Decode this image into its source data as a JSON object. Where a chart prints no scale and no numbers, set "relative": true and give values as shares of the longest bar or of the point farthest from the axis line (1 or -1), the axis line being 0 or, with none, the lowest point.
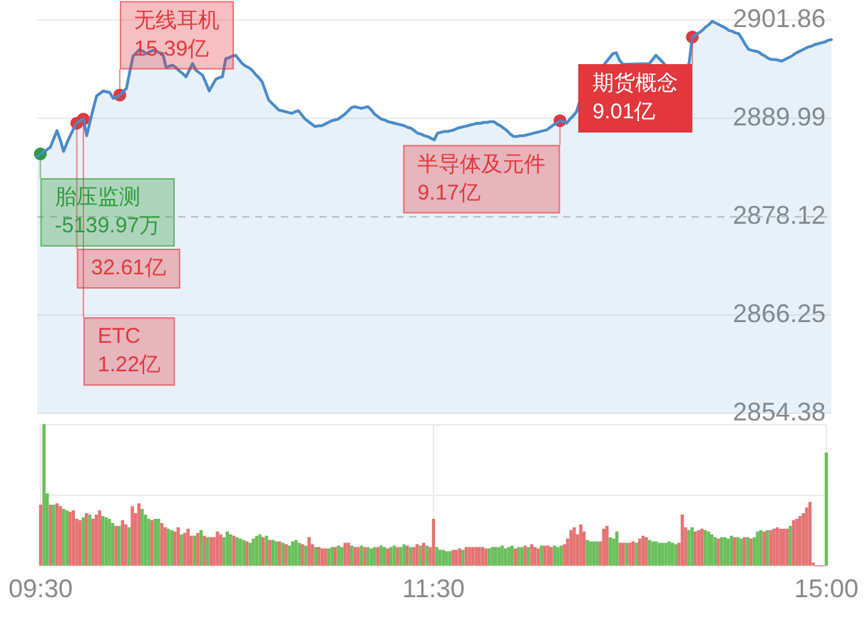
{
  "chart_data": [
    {
      "type": "area",
      "grid": "y",
      "tick_labels": "y",
      "marker": "none",
      "categories": [
        null,
        null,
        null,
        null,
        null,
        null,
        null,
        null,
        null,
        null,
        null,
        null,
        null,
        null,
        null,
        null,
        null,
        null,
        null,
        null,
        null,
        null,
        null,
        null,
        null,
        null,
        null,
        null,
        null,
        null,
        null,
        null,
        null,
        null,
        null,
        null,
        null,
        null,
        null,
        null,
        null,
        null,
        null,
        null,
        null,
        null,
        null,
        null,
        null,
        null,
        null,
        null,
        null,
        null,
        null,
        null,
        null,
        null,
        null,
        null,
        null,
        null,
        null,
        null,
        null,
        null,
        null,
        null,
        null,
        null,
        null,
        null,
        null,
        null,
        null,
        null,
        null,
        null,
        null,
        null,
        null,
        null,
        null,
        null,
        null,
        null,
        null,
        null,
        null,
        null,
        null,
        null,
        null,
        null,
        null,
        null,
        null,
        null,
        null,
        null,
        null,
        null,
        null,
        null,
        null,
        null,
        null,
        null,
        null,
        null,
        null,
        null,
        null,
        null,
        null,
        null,
        null,
        null,
        null,
        null,
        null,
        null,
        null,
        null,
        null,
        null,
        null,
        null,
        null,
        null,
        null,
        null,
        null,
        null,
        null,
        null,
        null,
        null,
        null,
        null,
        null,
        null,
        null,
        null,
        null,
        null,
        null,
        null,
        null,
        null,
        null,
        null,
        null,
        null,
        null,
        null,
        null,
        null,
        null,
        null,
        null,
        null,
        null,
        null,
        null,
        null,
        null,
        null,
        null,
        null,
        null,
        null,
        null,
        null,
        null,
        null,
        null,
        null,
        null,
        null,
        null,
        null,
        null,
        null,
        null,
        null,
        null,
        null,
        null,
        null,
        null,
        null,
        null,
        null,
        null,
        null,
        null,
        null,
        null,
        null,
        null,
        null,
        null,
        null,
        null,
        null,
        null,
        null,
        null,
        null,
        null,
        null,
        null,
        null,
        null,
        null,
        null,
        null,
        null,
        null,
        null,
        null,
        null,
        null,
        null,
        null,
        null,
        null,
        null,
        null,
        null,
        null,
        null,
        null,
        null,
        null,
        null,
        null,
        null,
        null,
        null
      ],
      "series": [
        {
          "color": "#4a8bc9",
          "values": [
            2885.4,
            2885.7,
            2886.0,
            2886.2,
            2886.5,
            2887.5,
            2888.5,
            2887.4,
            2886.0,
            2887.0,
            2887.9,
            2888.7,
            2889.4,
            2889.7,
            2889.9,
            2887.9,
            2889.6,
            2891.2,
            2892.7,
            2893.0,
            2893.3,
            2893.2,
            2893.1,
            2892.4,
            2892.6,
            2892.8,
            2893.2,
            2893.6,
            2895.6,
            2897.5,
            2897.9,
            2898.3,
            2898.1,
            2897.8,
            2898.0,
            2898.2,
            2898.1,
            2897.9,
            2897.8,
            2896.1,
            2896.3,
            2896.4,
            2896.1,
            2895.7,
            2895.4,
            2895.0,
            2895.8,
            2896.6,
            2895.8,
            2895.5,
            2895.2,
            2894.3,
            2893.3,
            2894.0,
            2894.7,
            2894.9,
            2895.0,
            2897.2,
            2897.3,
            2897.5,
            2897.6,
            2897.1,
            2896.6,
            2896.3,
            2896.1,
            2895.8,
            2895.3,
            2894.9,
            2894.4,
            2893.3,
            2892.2,
            2891.8,
            2891.4,
            2891.0,
            2890.9,
            2890.8,
            2890.7,
            2890.6,
            2890.8,
            2890.9,
            2890.4,
            2889.9,
            2889.6,
            2889.3,
            2889.0,
            2889.1,
            2889.1,
            2889.3,
            2889.5,
            2889.7,
            2889.8,
            2889.9,
            2890.2,
            2890.5,
            2890.9,
            2891.3,
            2891.4,
            2891.3,
            2891.2,
            2891.3,
            2891.4,
            2891.0,
            2890.5,
            2890.2,
            2889.9,
            2889.8,
            2889.6,
            2889.5,
            2889.4,
            2889.3,
            2889.2,
            2889.1,
            2888.9,
            2888.8,
            2888.5,
            2888.2,
            2888.1,
            2887.9,
            2887.8,
            2887.6,
            2887.4,
            2888.2,
            2888.3,
            2888.4,
            2888.4,
            2888.5,
            2888.6,
            2888.8,
            2888.9,
            2889.0,
            2889.1,
            2889.2,
            2889.3,
            2889.4,
            2889.4,
            2889.5,
            2889.5,
            2889.6,
            2889.6,
            2889.3,
            2889.1,
            2888.8,
            2888.5,
            2888.1,
            2887.8,
            2887.8,
            2887.9,
            2887.9,
            2888.0,
            2888.1,
            2888.2,
            2888.3,
            2888.4,
            2888.5,
            2888.6,
            2888.9,
            2889.2,
            2889.4,
            2889.7,
            2889.6,
            2889.4,
            2889.9,
            2890.3,
            2890.8,
            2892.1,
            null,
            null,
            null,
            null,
            null,
            null,
            2896.3,
            2896.8,
            2897.3,
            2897.8,
            2897.9,
            2897.0,
            2896.5,
            null,
            null,
            null,
            null,
            null,
            null,
            null,
            2896.6,
            2897.1,
            2897.6,
            2897.2,
            2896.8,
            2896.3,
            null,
            null,
            null,
            null,
            null,
            2896.2,
            2896.6,
            2899.8,
            2900.1,
            2900.3,
            2900.6,
            2901.0,
            2901.3,
            2901.7,
            2901.5,
            2901.3,
            2901.1,
            2900.9,
            2900.6,
            2900.5,
            2900.3,
            2900.2,
            2899.6,
            2898.9,
            2898.3,
            2898.2,
            2898.1,
            2898.0,
            2897.7,
            2897.5,
            2897.2,
            2897.1,
            2897.1,
            2897.0,
            2896.9,
            2897.1,
            2897.3,
            2897.5,
            2897.8,
            2898.0,
            2898.2,
            2898.4,
            2898.6,
            2898.7,
            2898.9,
            2899.0,
            2899.1,
            2899.2,
            2899.4,
            2899.5
          ]
        },
        {
          "type": "scatter",
          "marker": "circle",
          "color": "#2e9b3c",
          "values": [
            null,
            2885.7,
            null,
            null,
            null,
            null,
            null,
            null,
            null,
            null,
            null,
            null,
            null,
            null,
            null,
            null,
            null,
            null,
            null,
            null,
            null,
            null,
            null,
            null,
            null,
            null,
            null,
            null,
            null,
            null,
            null,
            null,
            null,
            null,
            null,
            null,
            null,
            null,
            null,
            null,
            null,
            null,
            null,
            null,
            null,
            null,
            null,
            null,
            null,
            null,
            null,
            null,
            null,
            null,
            null,
            null,
            null,
            null,
            null,
            null,
            null,
            null,
            null,
            null,
            null,
            null,
            null,
            null,
            null,
            null,
            null,
            null,
            null,
            null,
            null,
            null,
            null,
            null,
            null,
            null,
            null,
            null,
            null,
            null,
            null,
            null,
            null,
            null,
            null,
            null,
            null,
            null,
            null,
            null,
            null,
            null,
            null,
            null,
            null,
            null,
            null,
            null,
            null,
            null,
            null,
            null,
            null,
            null,
            null,
            null,
            null,
            null,
            null,
            null,
            null,
            null,
            null,
            null,
            null,
            null,
            null,
            null,
            null,
            null,
            null,
            null,
            null,
            null,
            null,
            null,
            null,
            null,
            null,
            null,
            null,
            null,
            null,
            null,
            null,
            null,
            null,
            null,
            null,
            null,
            null,
            null,
            null,
            null,
            null,
            null,
            null,
            null,
            null,
            null,
            null,
            null,
            null,
            null,
            null,
            null,
            null,
            null,
            null,
            null,
            null,
            null,
            null,
            null,
            null,
            null,
            null,
            null,
            null,
            null,
            null,
            null,
            null,
            null,
            null,
            null,
            null,
            null,
            null,
            null,
            null,
            null,
            null,
            null,
            null,
            null,
            null,
            null,
            null,
            null,
            null,
            null,
            null,
            null,
            null,
            null,
            null,
            null,
            null,
            null,
            null,
            null,
            null,
            null,
            null,
            null,
            null,
            null,
            null,
            null,
            null,
            null,
            null,
            null,
            null,
            null,
            null,
            null,
            null,
            null,
            null,
            null,
            null,
            null,
            null,
            null,
            null,
            null,
            null,
            null,
            null,
            null,
            null,
            null,
            null,
            null,
            null
          ]
        },
        {
          "type": "scatter",
          "marker": "circle",
          "color": "#e2373d",
          "values": [
            null,
            null,
            null,
            null,
            null,
            null,
            null,
            null,
            null,
            null,
            null,
            null,
            2889.4,
            null,
            2889.9,
            null,
            null,
            null,
            null,
            null,
            null,
            null,
            null,
            null,
            null,
            2892.8,
            null,
            null,
            null,
            null,
            null,
            null,
            null,
            null,
            null,
            null,
            null,
            null,
            null,
            null,
            null,
            null,
            null,
            null,
            null,
            null,
            null,
            null,
            null,
            null,
            null,
            null,
            null,
            null,
            null,
            null,
            null,
            null,
            null,
            null,
            null,
            null,
            null,
            null,
            null,
            null,
            null,
            null,
            null,
            null,
            null,
            null,
            null,
            null,
            null,
            null,
            null,
            null,
            null,
            null,
            null,
            null,
            null,
            null,
            null,
            null,
            null,
            null,
            null,
            null,
            null,
            null,
            null,
            null,
            null,
            null,
            null,
            null,
            null,
            null,
            null,
            null,
            null,
            null,
            null,
            null,
            null,
            null,
            null,
            null,
            null,
            null,
            null,
            null,
            null,
            null,
            null,
            null,
            null,
            null,
            null,
            null,
            null,
            null,
            null,
            null,
            null,
            null,
            null,
            null,
            null,
            null,
            null,
            null,
            null,
            null,
            null,
            null,
            null,
            null,
            null,
            null,
            null,
            null,
            null,
            null,
            null,
            null,
            null,
            null,
            null,
            null,
            null,
            null,
            null,
            null,
            null,
            null,
            2889.7,
            null,
            null,
            null,
            null,
            null,
            null,
            null,
            null,
            null,
            null,
            null,
            null,
            null,
            null,
            null,
            null,
            null,
            null,
            null,
            null,
            null,
            null,
            null,
            null,
            null,
            null,
            null,
            null,
            null,
            null,
            null,
            null,
            null,
            null,
            null,
            null,
            null,
            null,
            null,
            2899.8,
            null,
            null,
            null,
            null,
            null,
            null,
            null,
            null,
            null,
            null,
            null,
            null,
            null,
            null,
            null,
            null,
            null,
            null,
            null,
            null,
            null,
            null,
            null,
            null,
            null,
            null,
            null,
            null,
            null,
            null,
            null,
            null,
            null,
            null,
            null,
            null,
            null,
            null,
            null,
            null,
            null,
            null
          ]
        }
      ],
      "ylim": [
        2854.38,
        2901.86
      ],
      "yticks": [
        2854.38,
        2866.25,
        2878.12,
        2889.99,
        2901.86
      ],
      "ref_lines": [
        {
          "axis": "y",
          "value": 2878.12,
          "line_style": "dashed"
        }
      ],
      "annotations": [
        "胎压监测\n-5139.97万",
        "32.61亿",
        "ETC\n1.22亿",
        "无线耳机\n15.39亿",
        "半导体及元件\n9.17亿",
        "期货概念\n9.01亿"
      ]
    },
    {
      "type": "bar",
      "relative": true,
      "grid": true,
      "tick_labels": "x",
      "categories": [
        "09:30",
        null,
        null,
        null,
        null,
        null,
        null,
        null,
        null,
        null,
        null,
        null,
        null,
        null,
        null,
        null,
        null,
        null,
        null,
        null,
        null,
        null,
        null,
        null,
        null,
        null,
        null,
        null,
        null,
        null,
        null,
        null,
        null,
        null,
        null,
        null,
        null,
        null,
        null,
        null,
        null,
        null,
        null,
        null,
        null,
        null,
        null,
        null,
        null,
        null,
        null,
        null,
        null,
        null,
        null,
        null,
        null,
        null,
        null,
        null,
        null,
        null,
        null,
        null,
        null,
        null,
        null,
        null,
        null,
        null,
        null,
        null,
        null,
        null,
        null,
        null,
        null,
        null,
        null,
        null,
        null,
        null,
        null,
        null,
        null,
        null,
        null,
        null,
        null,
        null,
        null,
        null,
        null,
        null,
        null,
        null,
        null,
        null,
        null,
        null,
        null,
        null,
        null,
        null,
        null,
        null,
        null,
        null,
        null,
        null,
        null,
        null,
        null,
        null,
        null,
        null,
        null,
        null,
        null,
        null,
        "11:30",
        null,
        null,
        null,
        null,
        null,
        null,
        null,
        null,
        null,
        null,
        null,
        null,
        null,
        null,
        null,
        null,
        null,
        null,
        null,
        null,
        null,
        null,
        null,
        null,
        null,
        null,
        null,
        null,
        null,
        null,
        null,
        null,
        null,
        null,
        null,
        null,
        null,
        null,
        null,
        null,
        null,
        null,
        null,
        null,
        null,
        null,
        null,
        null,
        null,
        null,
        null,
        null,
        null,
        null,
        null,
        null,
        null,
        null,
        null,
        null,
        null,
        null,
        null,
        null,
        null,
        null,
        null,
        null,
        null,
        null,
        null,
        null,
        null,
        null,
        null,
        null,
        null,
        null,
        null,
        null,
        null,
        null,
        null,
        null,
        null,
        null,
        null,
        null,
        null,
        null,
        null,
        null,
        null,
        null,
        null,
        null,
        null,
        null,
        null,
        null,
        null,
        null,
        null,
        null,
        null,
        null,
        null,
        null,
        null,
        null,
        null,
        null,
        null,
        null,
        null,
        null,
        null,
        null,
        null,
        "15:00"
      ],
      "values": [
        0.43,
        1,
        0.51,
        0.43,
        0.43,
        0.44,
        0.42,
        0.4,
        0.39,
        0.38,
        0.39,
        0.33,
        0.32,
        0.34,
        0.37,
        0.36,
        0.33,
        0.36,
        0.39,
        0.35,
        0.34,
        0.33,
        0.3,
        0.28,
        0.28,
        0.32,
        0.29,
        0.27,
        0.42,
        0.37,
        0.44,
        0.4,
        0.36,
        0.33,
        0.32,
        0.33,
        0.33,
        0.3,
        0.27,
        0.26,
        0.25,
        0.24,
        0.27,
        0.22,
        0.23,
        0.26,
        0.21,
        0.21,
        0.23,
        0.25,
        0.21,
        0.2,
        0.2,
        0.2,
        0.24,
        0.22,
        0.2,
        0.24,
        0.22,
        0.21,
        0.2,
        0.19,
        0.18,
        0.17,
        0.16,
        0.19,
        0.21,
        0.22,
        0.2,
        0.21,
        0.18,
        0.18,
        0.17,
        0.17,
        0.16,
        0.15,
        0.14,
        0.17,
        0.18,
        0.16,
        0.15,
        0.14,
        0.2,
        0.15,
        0.13,
        0.13,
        0.12,
        0.12,
        0.12,
        0.13,
        0.13,
        0.14,
        0.13,
        0.16,
        0.16,
        0.14,
        0.13,
        0.13,
        0.14,
        0.13,
        0.13,
        0.12,
        0.13,
        0.13,
        0.14,
        0.13,
        0.12,
        0.13,
        0.14,
        0.13,
        0.13,
        0.15,
        0.14,
        0.13,
        0.13,
        0.15,
        0.14,
        0.16,
        0.14,
        0.13,
        0.33,
        0.13,
        0.11,
        0.11,
        0.1,
        0.1,
        0.11,
        0.11,
        0.12,
        0.11,
        0.13,
        0.13,
        0.13,
        0.13,
        0.13,
        0.13,
        0.12,
        0.12,
        0.13,
        0.13,
        0.13,
        0.14,
        0.12,
        0.13,
        0.14,
        0.12,
        0.13,
        0.13,
        0.14,
        0.13,
        0.15,
        0.13,
        0.12,
        0.14,
        0.14,
        0.14,
        0.13,
        0.14,
        0.13,
        0.14,
        0.15,
        0.19,
        0.25,
        0.27,
        0.22,
        0.29,
        0.24,
        0.18,
        0.17,
        0.17,
        0.17,
        0.17,
        0.26,
        0.28,
        0.2,
        0.19,
        0.24,
        0.16,
        0.16,
        0.16,
        0.16,
        0.17,
        0.16,
        0.19,
        0.21,
        0.2,
        0.18,
        0.17,
        0.17,
        0.16,
        0.16,
        0.16,
        0.17,
        0.16,
        0.15,
        0.16,
        0.36,
        0.27,
        0.25,
        0.27,
        0.24,
        0.25,
        0.26,
        0.25,
        0.24,
        0.22,
        0.2,
        0.19,
        0.2,
        0.2,
        0.19,
        0.21,
        0.2,
        0.2,
        0.19,
        0.2,
        0.2,
        0.19,
        0.2,
        0.24,
        0.25,
        0.24,
        0.25,
        0.25,
        0.26,
        0.27,
        0.26,
        0.26,
        0.26,
        0.28,
        0.32,
        0.33,
        0.35,
        0.37,
        0.41,
        0.45,
        0.02,
        0,
        0,
        0,
        0.8
      ],
      "colors": [
        "#e57373",
        "#6abf5a",
        "#6abf5a",
        "#e57373",
        "#6abf5a",
        "#e57373",
        "#e57373",
        "#6abf5a",
        "#6abf5a",
        "#e57373",
        "#e57373",
        "#e57373",
        "#e57373",
        "#6abf5a",
        "#e57373",
        "#6abf5a",
        "#e57373",
        "#e57373",
        "#e57373",
        "#6abf5a",
        "#6abf5a",
        "#6abf5a",
        "#6abf5a",
        "#e57373",
        "#6abf5a",
        "#e57373",
        "#e57373",
        "#6abf5a",
        "#e57373",
        "#e57373",
        "#e57373",
        "#6abf5a",
        "#6abf5a",
        "#6abf5a",
        "#e57373",
        "#6abf5a",
        "#6abf5a",
        "#e57373",
        "#e57373",
        "#6abf5a",
        "#6abf5a",
        "#e57373",
        "#e57373",
        "#6abf5a",
        "#e57373",
        "#e57373",
        "#e57373",
        "#6abf5a",
        "#e57373",
        "#6abf5a",
        "#e57373",
        "#6abf5a",
        "#e57373",
        "#e57373",
        "#e57373",
        "#e57373",
        "#6abf5a",
        "#6abf5a",
        "#6abf5a",
        "#e57373",
        "#6abf5a",
        "#6abf5a",
        "#6abf5a",
        "#e57373",
        "#6abf5a",
        "#6abf5a",
        "#6abf5a",
        "#6abf5a",
        "#e57373",
        "#6abf5a",
        "#e57373",
        "#6abf5a",
        "#6abf5a",
        "#e57373",
        "#6abf5a",
        "#e57373",
        "#6abf5a",
        "#6abf5a",
        "#6abf5a",
        "#6abf5a",
        "#e57373",
        "#6abf5a",
        "#e57373",
        "#e57373",
        "#6abf5a",
        "#e57373",
        "#e57373",
        "#e57373",
        "#6abf5a",
        "#6abf5a",
        "#e57373",
        "#6abf5a",
        "#6abf5a",
        "#e57373",
        "#e57373",
        "#6abf5a",
        "#e57373",
        "#e57373",
        "#6abf5a",
        "#e57373",
        "#6abf5a",
        "#6abf5a",
        "#6abf5a",
        "#e57373",
        "#6abf5a",
        "#6abf5a",
        "#e57373",
        "#6abf5a",
        "#6abf5a",
        "#e57373",
        "#6abf5a",
        "#6abf5a",
        "#e57373",
        "#6abf5a",
        "#e57373",
        "#e57373",
        "#6abf5a",
        "#e57373",
        "#6abf5a",
        "#e57373",
        "#e57373",
        "#6abf5a",
        "#6abf5a",
        "#6abf5a",
        "#6abf5a",
        "#6abf5a",
        "#e57373",
        "#e57373",
        "#e57373",
        "#6abf5a",
        "#e57373",
        "#e57373",
        "#e57373",
        "#e57373",
        "#e57373",
        "#e57373",
        "#e57373",
        "#6abf5a",
        "#6abf5a",
        "#6abf5a",
        "#6abf5a",
        "#6abf5a",
        "#6abf5a",
        "#6abf5a",
        "#6abf5a",
        "#e57373",
        "#6abf5a",
        "#6abf5a",
        "#e57373",
        "#6abf5a",
        "#e57373",
        "#e57373",
        "#e57373",
        "#6abf5a",
        "#e57373",
        "#e57373",
        "#e57373",
        "#6abf5a",
        "#6abf5a",
        "#6abf5a",
        "#e57373",
        "#e57373",
        "#e57373",
        "#e57373",
        "#e57373",
        "#e57373",
        "#e57373",
        "#6abf5a",
        "#6abf5a",
        "#6abf5a",
        "#6abf5a",
        "#e57373",
        "#e57373",
        "#e57373",
        "#6abf5a",
        "#6abf5a",
        "#6abf5a",
        "#e57373",
        "#e57373",
        "#6abf5a",
        "#e57373",
        "#e57373",
        "#6abf5a",
        "#e57373",
        "#e57373",
        "#e57373",
        "#6abf5a",
        "#6abf5a",
        "#6abf5a",
        "#6abf5a",
        "#6abf5a",
        "#6abf5a",
        "#6abf5a",
        "#6abf5a",
        "#6abf5a",
        "#e57373",
        "#e57373",
        "#e57373",
        "#6abf5a",
        "#6abf5a",
        "#e57373",
        "#e57373",
        "#e57373",
        "#6abf5a",
        "#6abf5a",
        "#6abf5a",
        "#6abf5a",
        "#e57373",
        "#6abf5a",
        "#6abf5a",
        "#6abf5a",
        "#6abf5a",
        "#e57373",
        "#6abf5a",
        "#6abf5a",
        "#e57373",
        "#6abf5a",
        "#e57373",
        "#6abf5a",
        "#6abf5a",
        "#6abf5a",
        "#e57373",
        "#6abf5a",
        "#e57373",
        "#e57373",
        "#e57373",
        "#e57373",
        "#e57373",
        "#e57373",
        "#6abf5a",
        "#e57373",
        "#e57373",
        "#e57373",
        "#e57373",
        "#e57373",
        "#e57373",
        "#e57373",
        "#e57373",
        "#e57373",
        "#e57373",
        "#6abf5a"
      ]
    }
  ]
}
